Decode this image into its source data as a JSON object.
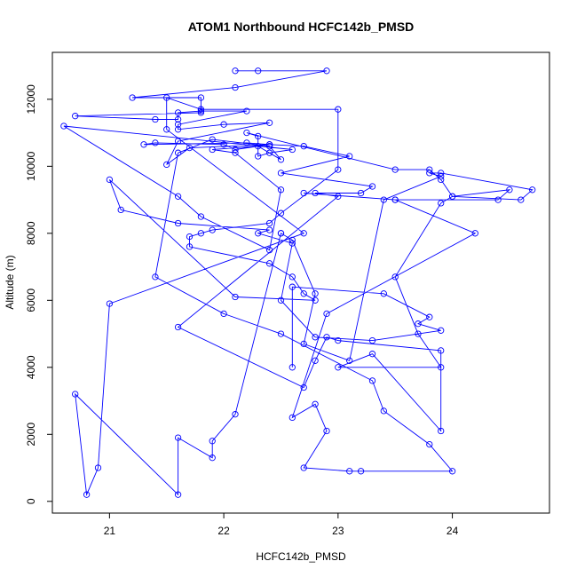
{
  "chart_data": {
    "type": "line",
    "title": "ATOM1 Northbound HCFC142b_PMSD",
    "xlabel": "HCFC142b_PMSD",
    "ylabel": "Altitude (m)",
    "xlim": [
      20.5,
      24.85
    ],
    "ylim": [
      -350,
      13400
    ],
    "x_ticks": [
      21,
      22,
      23,
      24
    ],
    "y_ticks": [
      0,
      2000,
      4000,
      6000,
      8000,
      10000,
      12000
    ],
    "x_tick_labels": [
      "21",
      "22",
      "23",
      "24"
    ],
    "y_tick_labels": [
      "0",
      "2000",
      "4000",
      "6000",
      "8000",
      "10000",
      "12000"
    ],
    "grid": false,
    "legend": "none",
    "line_color": "#0000ff",
    "marker": "open-circle",
    "series": [
      {
        "x": [
          22.1,
          22.3,
          22.9,
          22.1,
          21.2,
          21.8,
          21.8,
          20.7,
          21.4,
          21.6,
          21.6,
          21.8,
          22.2,
          21.6,
          21.6,
          22.0,
          22.4,
          21.6,
          21.5,
          21.7,
          22.4,
          22.2,
          21.3,
          21.4,
          22.0,
          22.1,
          22.4,
          22.7,
          23.1,
          22.5,
          23.3,
          23.2,
          22.8,
          23.0,
          21.6,
          22.7,
          22.8,
          22.9,
          23.0,
          23.9,
          23.9,
          23.3,
          23.0,
          23.9,
          23.7,
          23.5,
          23.9,
          24.0,
          24.5,
          24.4,
          23.5,
          22.7,
          23.5,
          24.2,
          22.9,
          22.6,
          22.8,
          22.9,
          22.7,
          23.1,
          23.2,
          24.0,
          23.8,
          23.4,
          23.3,
          22.5,
          22.0,
          21.4,
          21.6,
          21.9,
          22.4,
          22.5,
          22.3,
          21.9,
          22.1,
          22.5,
          22.4,
          21.8,
          21.6,
          20.6,
          22.6,
          22.4,
          22.3,
          22.3,
          22.2,
          23.5,
          23.8,
          23.9,
          24.0,
          24.6,
          24.7,
          23.9,
          23.8,
          23.9,
          23.4,
          23.1,
          22.7,
          22.8,
          22.6,
          22.5,
          22.5,
          22.1,
          21.9,
          21.9,
          21.6,
          21.6,
          20.7,
          20.8,
          20.9,
          21.0,
          22.7,
          21.5,
          21.5,
          21.8,
          23.0,
          23.0,
          22.5,
          22.4,
          21.9,
          21.8,
          21.7,
          21.7,
          22.4,
          22.6,
          22.7,
          22.8,
          22.1,
          21.0,
          21.1,
          21.6,
          22.4,
          22.3,
          22.6,
          22.5,
          22.8,
          23.3,
          23.9,
          23.7,
          23.8,
          23.4,
          22.6,
          22.6
        ],
        "y": [
          12850,
          12850,
          12850,
          12350,
          12050,
          12050,
          11600,
          11500,
          11400,
          11400,
          11600,
          11650,
          11650,
          11250,
          11100,
          11250,
          11300,
          10750,
          10050,
          10550,
          10650,
          10700,
          10650,
          10700,
          10650,
          10500,
          10650,
          10600,
          10300,
          9800,
          9400,
          9200,
          9200,
          9100,
          5200,
          3400,
          4200,
          4900,
          4800,
          4500,
          2100,
          4400,
          4000,
          4000,
          5000,
          6700,
          8900,
          9100,
          9300,
          9000,
          9000,
          9200,
          9000,
          8000,
          5600,
          2500,
          2900,
          2100,
          1000,
          900,
          900,
          900,
          1700,
          2700,
          3600,
          5000,
          5600,
          6700,
          10400,
          10800,
          10600,
          10200,
          10600,
          10500,
          10400,
          9300,
          7500,
          8500,
          9100,
          11200,
          10500,
          10400,
          10300,
          10900,
          11000,
          9900,
          9900,
          9600,
          9100,
          9000,
          9300,
          9800,
          9800,
          9700,
          9000,
          4200,
          4700,
          6200,
          7800,
          8000,
          8000,
          2600,
          1800,
          1300,
          1900,
          200,
          3200,
          200,
          1000,
          5900,
          8000,
          11100,
          12050,
          11700,
          11700,
          9900,
          8600,
          8300,
          8100,
          8000,
          7900,
          7600,
          7100,
          6700,
          6200,
          6000,
          6100,
          9600,
          8700,
          8300,
          8100,
          8000,
          7700,
          6000,
          4900,
          4800,
          5100,
          5300,
          5500,
          6200,
          6400,
          4000
        ]
      }
    ],
    "series_meta": [
      {
        "values_note": ""
      }
    ]
  }
}
